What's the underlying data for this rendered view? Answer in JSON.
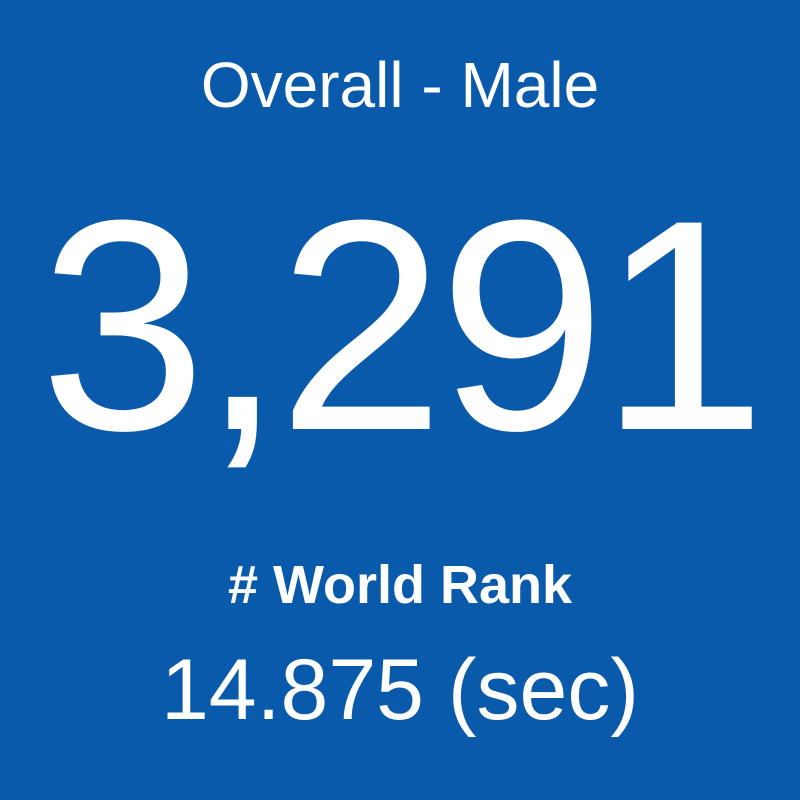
{
  "header": {
    "title": "Overall - Male"
  },
  "stat": {
    "value": "3,291",
    "label": "# World Rank",
    "time": "14.875 (sec)"
  }
}
